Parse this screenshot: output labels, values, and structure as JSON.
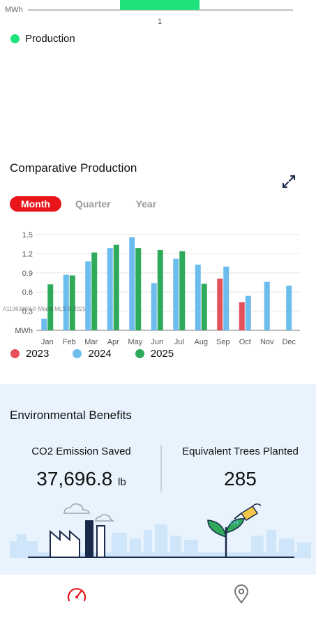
{
  "top_chart": {
    "unit": "MWh",
    "tick": "1",
    "legend_label": "Production",
    "legend_color": "#1ee37a"
  },
  "comparative": {
    "title": "Comparative Production",
    "expand_icon": "expand-arrows-icon",
    "tabs": [
      {
        "label": "Month",
        "active": true
      },
      {
        "label": "Quarter",
        "active": false
      },
      {
        "label": "Year",
        "active": false
      }
    ]
  },
  "chart_data": {
    "type": "bar",
    "ylabel": "MWh",
    "ylim": [
      0,
      1.5
    ],
    "yticks": [
      "0.3",
      "0.6",
      "0.9",
      "1.2",
      "1.5"
    ],
    "categories": [
      "Jan",
      "Feb",
      "Mar",
      "Apr",
      "May",
      "Jun",
      "Jul",
      "Aug",
      "Sep",
      "Oct",
      "Nov",
      "Dec"
    ],
    "legend_placement": "bottom",
    "grid": true,
    "series": [
      {
        "name": "2023",
        "color": "#e5505a",
        "values": [
          null,
          null,
          null,
          null,
          null,
          null,
          null,
          null,
          0.81,
          0.44,
          null,
          null
        ]
      },
      {
        "name": "2024",
        "color": "#6cbcee",
        "values": [
          0.18,
          0.87,
          1.08,
          1.29,
          1.46,
          0.74,
          1.12,
          1.03,
          1.0,
          0.54,
          0.76,
          0.7
        ]
      },
      {
        "name": "2025",
        "color": "#2faa5a",
        "values": [
          0.72,
          0.86,
          1.22,
          1.34,
          1.29,
          1.26,
          1.24,
          0.73,
          null,
          null,
          null,
          null
        ]
      }
    ]
  },
  "watermark": "A11363893 © Miami MLS © 2025",
  "environment": {
    "title": "Environmental Benefits",
    "co2_label": "CO2 Emission Saved",
    "co2_value": "37,696.8",
    "co2_unit": "lb",
    "trees_label": "Equivalent Trees Planted",
    "trees_value": "285"
  },
  "nav": {
    "items": [
      {
        "icon": "speedometer-icon",
        "active": true,
        "color": "#e8161b"
      },
      {
        "icon": "location-pin-icon",
        "active": false,
        "color": "#777777"
      }
    ]
  }
}
